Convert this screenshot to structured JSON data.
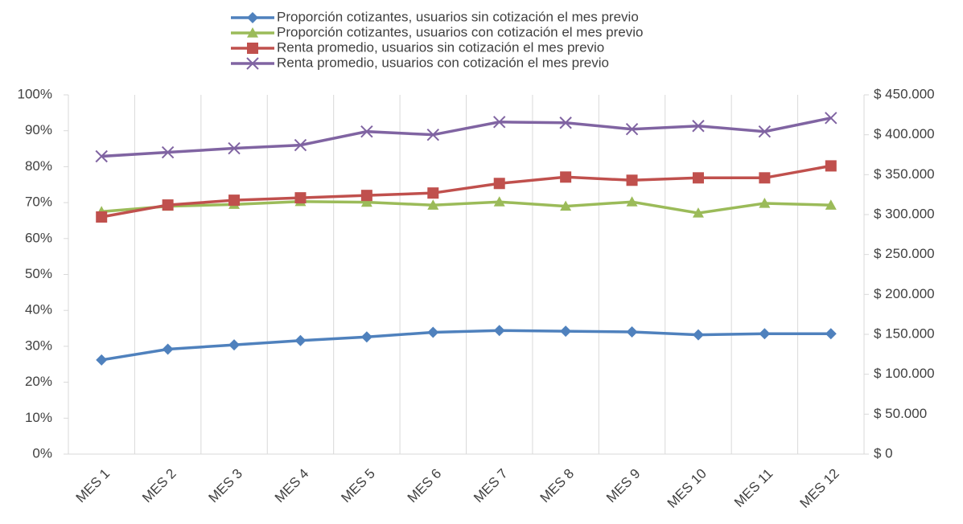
{
  "chart_data": {
    "type": "line",
    "categories": [
      "MES 1",
      "MES 2",
      "MES 3",
      "MES 4",
      "MES 5",
      "MES 6",
      "MES 7",
      "MES 8",
      "MES 9",
      "MES 10",
      "MES 11",
      "MES 12"
    ],
    "series": [
      {
        "name": "Proporción cotizantes, usuarios sin cotización el mes previo",
        "color": "#4f81bd",
        "marker": "diamond",
        "axis": "y",
        "values": [
          26.2,
          29.2,
          30.4,
          31.6,
          32.6,
          33.9,
          34.4,
          34.2,
          34.0,
          33.2,
          33.5,
          33.5
        ]
      },
      {
        "name": "Proporción cotizantes, usuarios con cotización el mes previo",
        "color": "#9bbb59",
        "marker": "triangle",
        "axis": "y",
        "values": [
          67.5,
          69.0,
          69.5,
          70.3,
          70.1,
          69.3,
          70.2,
          69.0,
          70.2,
          67.1,
          69.8,
          69.3
        ]
      },
      {
        "name": "Renta promedio, usuarios sin cotización el mes previo",
        "color": "#c0504d",
        "marker": "square",
        "axis": "y2",
        "values": [
          297000,
          312000,
          318000,
          321000,
          324000,
          327000,
          339000,
          347000,
          343000,
          346000,
          346000,
          361000
        ]
      },
      {
        "name": "Renta promedio, usuarios con cotización el mes previo",
        "color": "#8064a2",
        "marker": "x",
        "axis": "y2",
        "values": [
          373000,
          378000,
          383000,
          387000,
          404000,
          400000,
          416000,
          415000,
          407000,
          411000,
          404000,
          421000
        ]
      }
    ],
    "ylim": [
      0,
      100
    ],
    "yticks": [
      {
        "value": 0,
        "label": "0%"
      },
      {
        "value": 10,
        "label": "10%"
      },
      {
        "value": 20,
        "label": "20%"
      },
      {
        "value": 30,
        "label": "30%"
      },
      {
        "value": 40,
        "label": "40%"
      },
      {
        "value": 50,
        "label": "50%"
      },
      {
        "value": 60,
        "label": "60%"
      },
      {
        "value": 70,
        "label": "70%"
      },
      {
        "value": 80,
        "label": "80%"
      },
      {
        "value": 90,
        "label": "90%"
      },
      {
        "value": 100,
        "label": "100%"
      }
    ],
    "y2lim": [
      0,
      450000
    ],
    "y2ticks": [
      {
        "value": 0,
        "label": "$ 0"
      },
      {
        "value": 50000,
        "label": "$ 50.000"
      },
      {
        "value": 100000,
        "label": "$ 100.000"
      },
      {
        "value": 150000,
        "label": "$ 150.000"
      },
      {
        "value": 200000,
        "label": "$ 200.000"
      },
      {
        "value": 250000,
        "label": "$ 250.000"
      },
      {
        "value": 300000,
        "label": "$ 300.000"
      },
      {
        "value": 350000,
        "label": "$ 350.000"
      },
      {
        "value": 400000,
        "label": "$ 400.000"
      },
      {
        "value": 450000,
        "label": "$ 450.000"
      }
    ],
    "grid": true,
    "legend": "top"
  }
}
